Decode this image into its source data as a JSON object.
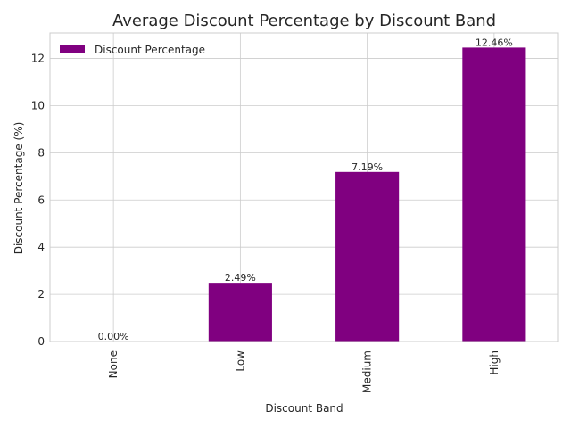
{
  "chart_data": {
    "type": "bar",
    "title": "Average Discount Percentage by Discount Band",
    "xlabel": "Discount Band",
    "ylabel": "Discount Percentage (%)",
    "categories": [
      "None",
      "Low",
      "Medium",
      "High"
    ],
    "series": [
      {
        "name": "Discount Percentage",
        "values": [
          0.0,
          2.49,
          7.19,
          12.46
        ],
        "labels": [
          "0.00%",
          "2.49%",
          "7.19%",
          "12.46%"
        ],
        "color": "#800080"
      }
    ],
    "ylim": [
      0,
      13.08
    ],
    "yticks": [
      0,
      2,
      4,
      6,
      8,
      10,
      12
    ],
    "grid": true,
    "legend": "top-left"
  }
}
